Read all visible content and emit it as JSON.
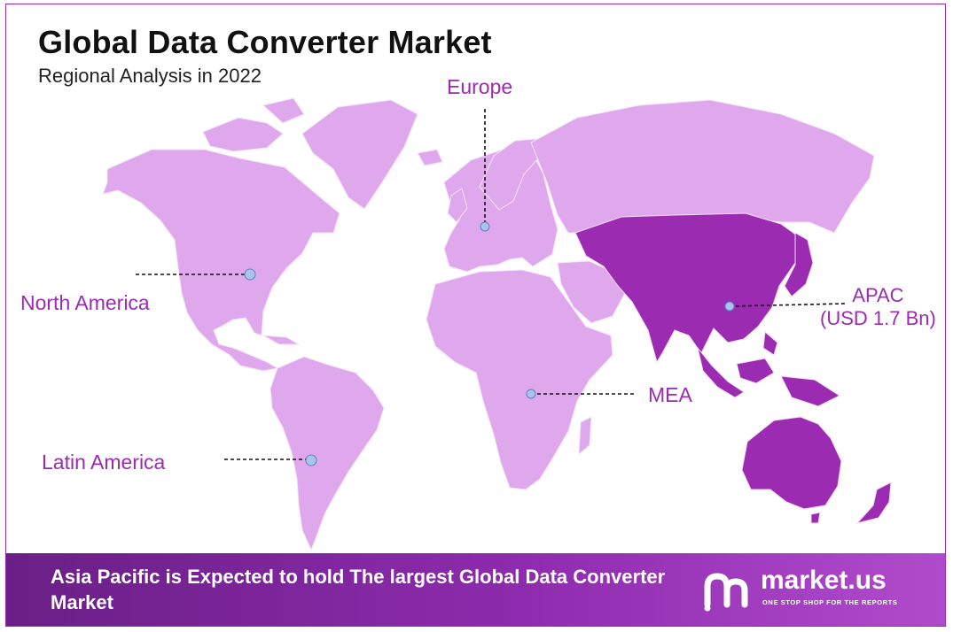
{
  "header": {
    "title": "Global Data Converter Market",
    "subtitle": "Regional Analysis in 2022"
  },
  "regions": [
    {
      "id": "europe",
      "label": "Europe",
      "sublabel": ""
    },
    {
      "id": "north-america",
      "label": "North America",
      "sublabel": ""
    },
    {
      "id": "apac",
      "label": "APAC",
      "sublabel": "(USD 1.7 Bn)"
    },
    {
      "id": "mea",
      "label": "MEA",
      "sublabel": ""
    },
    {
      "id": "latin-america",
      "label": "Latin America",
      "sublabel": ""
    }
  ],
  "highlighted_region": "APAC",
  "colors": {
    "map_base": "#e0a8ec",
    "map_highlight": "#9b2bb0",
    "label_text": "#9b2bb0",
    "marker": "#a9c3ea",
    "banner_start": "#6a1f86",
    "banner_end": "#b04bcc"
  },
  "banner": {
    "text": "Asia Pacific is Expected to hold The largest Global Data Converter Market"
  },
  "brand": {
    "name": "market.us",
    "tagline": "ONE STOP SHOP FOR THE REPORTS",
    "logo_icon": "market-us-logo-icon"
  }
}
